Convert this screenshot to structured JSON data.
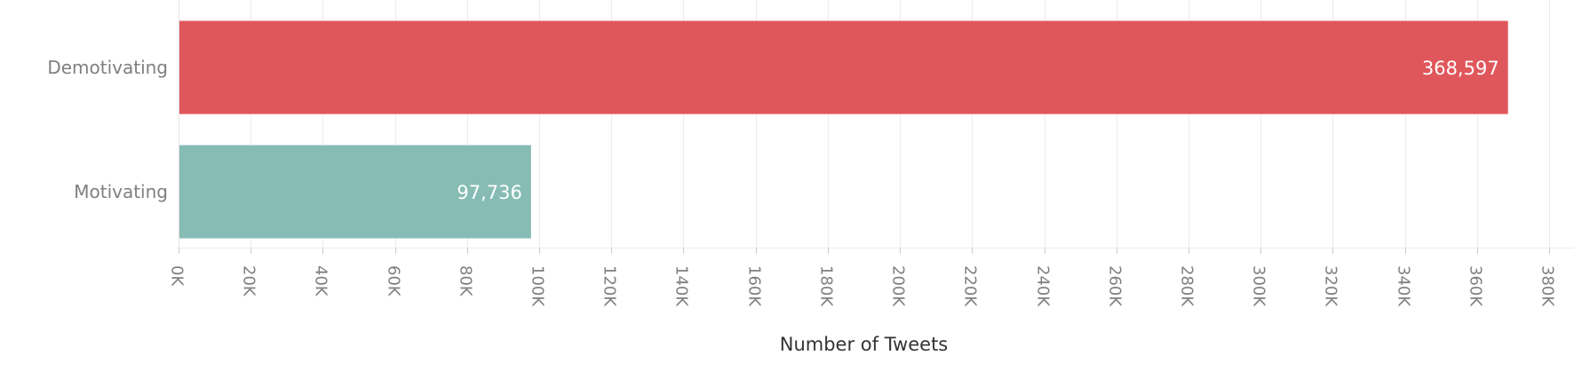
{
  "chart_data": {
    "type": "bar",
    "orientation": "horizontal",
    "categories": [
      "Demotivating",
      "Motivating"
    ],
    "values": [
      368597,
      97736
    ],
    "value_labels": [
      "368,597",
      "97,736"
    ],
    "colors": [
      "#e0575b",
      "#87bcb5"
    ],
    "xlabel": "Number of Tweets",
    "ylabel": "",
    "xlim": [
      0,
      380000
    ],
    "xticks": [
      0,
      20000,
      40000,
      60000,
      80000,
      100000,
      120000,
      140000,
      160000,
      180000,
      200000,
      220000,
      240000,
      260000,
      280000,
      300000,
      320000,
      340000,
      360000,
      380000
    ],
    "xtick_labels": [
      "0K",
      "20K",
      "40K",
      "60K",
      "80K",
      "100K",
      "120K",
      "140K",
      "160K",
      "180K",
      "200K",
      "220K",
      "240K",
      "260K",
      "280K",
      "300K",
      "320K",
      "340K",
      "360K",
      "380K"
    ],
    "grid": true
  }
}
